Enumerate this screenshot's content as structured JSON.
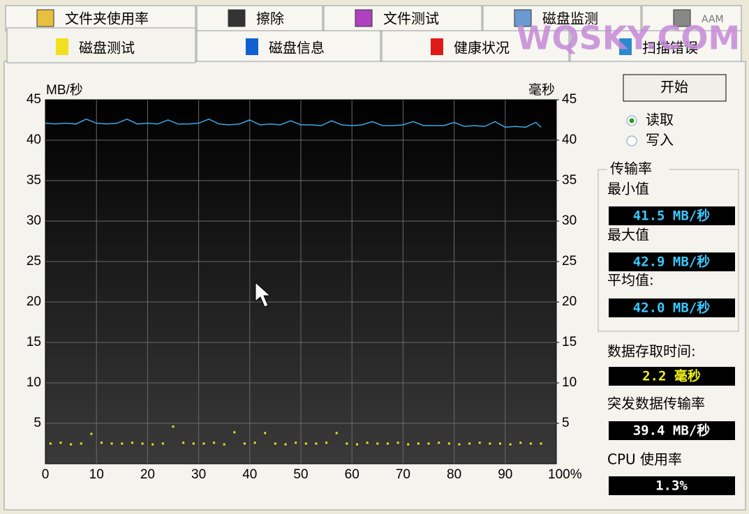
{
  "tabs_row1": [
    "文件夹使用率",
    "擦除",
    "文件测试",
    "磁盘监测",
    "AAM"
  ],
  "tabs_row2": [
    "磁盘测试",
    "磁盘信息",
    "健康状况",
    "扫描错误"
  ],
  "watermark": "WQSKY.COM",
  "chart": {
    "type": "line",
    "y_label": "MB/秒",
    "y2_label": "毫秒",
    "xlim": [
      0,
      100
    ],
    "xticks": [
      0,
      10,
      20,
      30,
      40,
      50,
      60,
      70,
      80,
      90,
      {
        "value": 100,
        "label": "100%"
      }
    ],
    "ylim": [
      0,
      45
    ],
    "yticks": [
      5,
      10,
      15,
      20,
      25,
      30,
      35,
      40,
      45
    ],
    "y2lim": [
      0,
      45
    ],
    "y2ticks": [
      5,
      10,
      15,
      20,
      25,
      30,
      35,
      40,
      45
    ],
    "grid": true,
    "series": [
      {
        "type": "line",
        "color": "#3aa8e4",
        "x": [
          0,
          2,
          4,
          6,
          8,
          10,
          12,
          14,
          16,
          18,
          20,
          22,
          24,
          26,
          28,
          30,
          32,
          34,
          36,
          38,
          40,
          42,
          44,
          46,
          48,
          50,
          52,
          54,
          56,
          58,
          60,
          62,
          64,
          66,
          68,
          70,
          72,
          74,
          76,
          78,
          80,
          82,
          84,
          86,
          88,
          90,
          92,
          94,
          96,
          97
        ],
        "values": [
          42.1,
          42.0,
          42.1,
          42.0,
          42.6,
          42.1,
          42.0,
          42.1,
          42.6,
          42.0,
          42.1,
          42.0,
          42.5,
          42.0,
          42.0,
          42.1,
          42.6,
          42.0,
          41.9,
          42.0,
          42.5,
          41.9,
          42.0,
          41.9,
          42.4,
          41.9,
          41.9,
          41.8,
          42.4,
          41.9,
          41.8,
          41.9,
          42.3,
          41.8,
          41.8,
          41.9,
          42.3,
          41.8,
          41.8,
          41.8,
          42.2,
          41.7,
          41.8,
          41.7,
          42.3,
          41.6,
          41.7,
          41.6,
          42.2,
          41.6
        ]
      },
      {
        "type": "scatter",
        "axis": "y2",
        "color": "#e8e41e",
        "x": [
          1,
          3,
          5,
          7,
          9,
          11,
          13,
          15,
          17,
          19,
          21,
          23,
          25,
          27,
          29,
          31,
          33,
          35,
          37,
          39,
          41,
          43,
          45,
          47,
          49,
          51,
          53,
          55,
          57,
          59,
          61,
          63,
          65,
          67,
          69,
          71,
          73,
          75,
          77,
          79,
          81,
          83,
          85,
          87,
          89,
          91,
          93,
          95,
          97
        ],
        "values": [
          2.5,
          2.6,
          2.4,
          2.5,
          3.7,
          2.6,
          2.5,
          2.5,
          2.6,
          2.5,
          2.4,
          2.5,
          4.6,
          2.6,
          2.5,
          2.5,
          2.6,
          2.4,
          3.9,
          2.5,
          2.6,
          3.8,
          2.5,
          2.4,
          2.6,
          2.5,
          2.5,
          2.6,
          3.8,
          2.5,
          2.4,
          2.6,
          2.5,
          2.5,
          2.6,
          2.4,
          2.5,
          2.5,
          2.6,
          2.5,
          2.4,
          2.5,
          2.6,
          2.5,
          2.5,
          2.4,
          2.6,
          2.5,
          2.5
        ]
      }
    ]
  },
  "panel": {
    "start_button": "开始",
    "read": "读取",
    "write": "写入",
    "read_selected": true,
    "transfer_group": "传输率",
    "min_label": "最小值",
    "min_value": "41.5 MB/秒",
    "max_label": "最大值",
    "max_value": "42.9 MB/秒",
    "avg_label": "平均值:",
    "avg_value": "42.0 MB/秒",
    "access_label": "数据存取时间:",
    "access_value": "2.2 毫秒",
    "burst_label": "突发数据传输率",
    "burst_value": "39.4 MB/秒",
    "cpu_label": "CPU 使用率",
    "cpu_value": "1.3%"
  }
}
